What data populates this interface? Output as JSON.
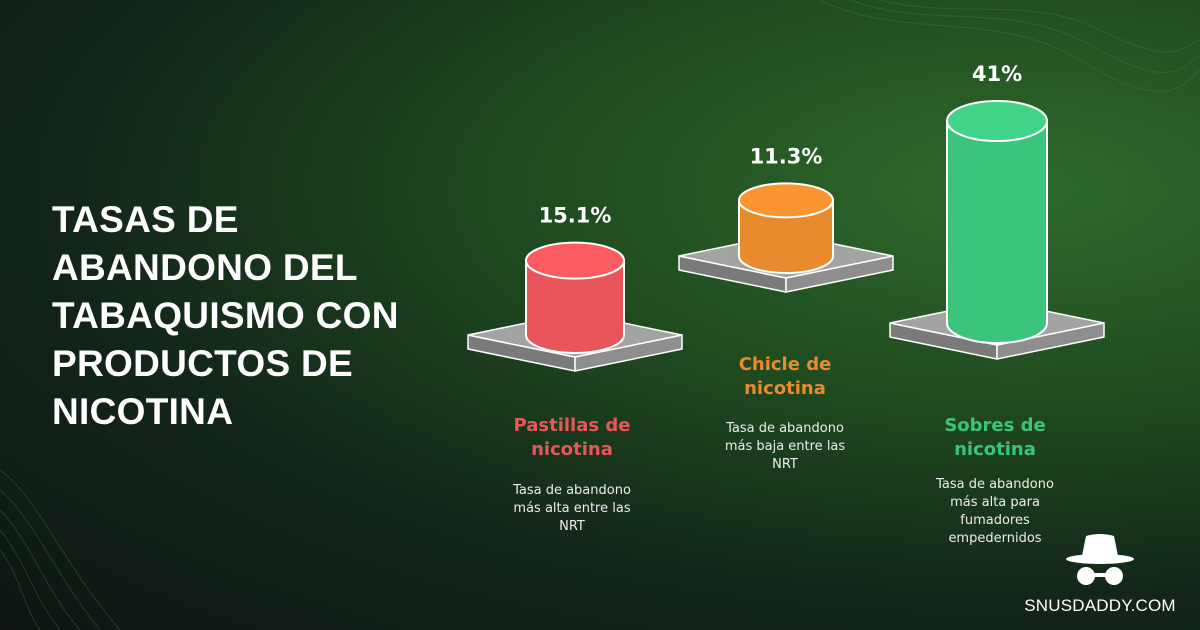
{
  "title_lines": [
    "TASAS DE",
    "ABANDONO DEL",
    "TABAQUISMO CON",
    "PRODUCTOS DE",
    "NICOTINA"
  ],
  "colors": {
    "red": "#e8555a",
    "orange": "#e88a2e",
    "green": "#3cc47d",
    "platform": "#a3a3a3"
  },
  "chart_data": {
    "type": "bar",
    "title": "TASAS DE ABANDONO DEL TABAQUISMO CON PRODUCTOS DE NICOTINA",
    "unit": "%",
    "categories": [
      "Pastillas de nicotina",
      "Chicle de nicotina",
      "Sobres de nicotina"
    ],
    "values": [
      15.1,
      11.3,
      41
    ],
    "value_labels": [
      "15.1%",
      "11.3%",
      "41%"
    ],
    "bars": [
      {
        "name_lines": [
          "Pastillas de",
          "nicotina"
        ],
        "desc_lines": [
          "Tasa de abandono",
          "más alta entre las",
          "NRT"
        ],
        "color": "#e8555a"
      },
      {
        "name_lines": [
          "Chicle de",
          "nicotina"
        ],
        "desc_lines": [
          "Tasa de abandono",
          "más baja entre las",
          "NRT"
        ],
        "color": "#e88a2e"
      },
      {
        "name_lines": [
          "Sobres de",
          "nicotina"
        ],
        "desc_lines": [
          "Tasa de abandono",
          "más alta para",
          "fumadores",
          "empedernidos"
        ],
        "color": "#3cc47d"
      }
    ]
  },
  "brand": {
    "name": "SNUSDADDY.COM",
    "icon": "incognito-hat-glasses-icon"
  }
}
